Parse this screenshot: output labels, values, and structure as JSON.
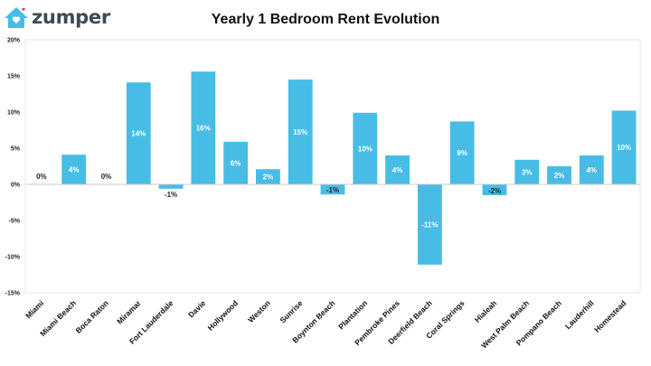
{
  "brand": {
    "name": "zumper",
    "logo_icon": "house-heart-icon",
    "accent": "#47bde6",
    "heart_color": "#e8336d"
  },
  "chart_data": {
    "type": "bar",
    "title": "Yearly 1 Bedroom Rent Evolution",
    "xlabel": "",
    "ylabel": "",
    "categories": [
      "Miami",
      "Miami Beach",
      "Boca Raton",
      "Miramar",
      "Fort Lauderdale",
      "Davie",
      "Hollywood",
      "Weston",
      "Sunrise",
      "Boynton Beach",
      "Plantation",
      "Pembroke Pines",
      "Deerfield Beach",
      "Coral Springs",
      "Hialeah",
      "West Palm Beach",
      "Pompano Beach",
      "Lauderhill",
      "Homestead"
    ],
    "values": [
      0,
      4.1,
      0,
      14.1,
      -0.6,
      15.6,
      5.9,
      2.1,
      14.5,
      -1.4,
      9.9,
      4.0,
      -11.1,
      8.7,
      -1.5,
      3.4,
      2.5,
      4.0,
      10.2
    ],
    "data_labels": [
      "0%",
      "4%",
      "0%",
      "14%",
      "-1%",
      "16%",
      "6%",
      "2%",
      "15%",
      "-1%",
      "10%",
      "4%",
      "-11%",
      "9%",
      "-2%",
      "3%",
      "2%",
      "4%",
      "10%"
    ],
    "ylim": [
      -15,
      20
    ],
    "yticks": [
      20,
      15,
      10,
      5,
      0,
      -5,
      -10,
      -15
    ],
    "ytick_labels": [
      "20%",
      "15%",
      "10%",
      "5%",
      "0%",
      "-5%",
      "-10%",
      "-15%"
    ],
    "bar_color": "#47bde6",
    "grid": false,
    "legend": "none"
  }
}
